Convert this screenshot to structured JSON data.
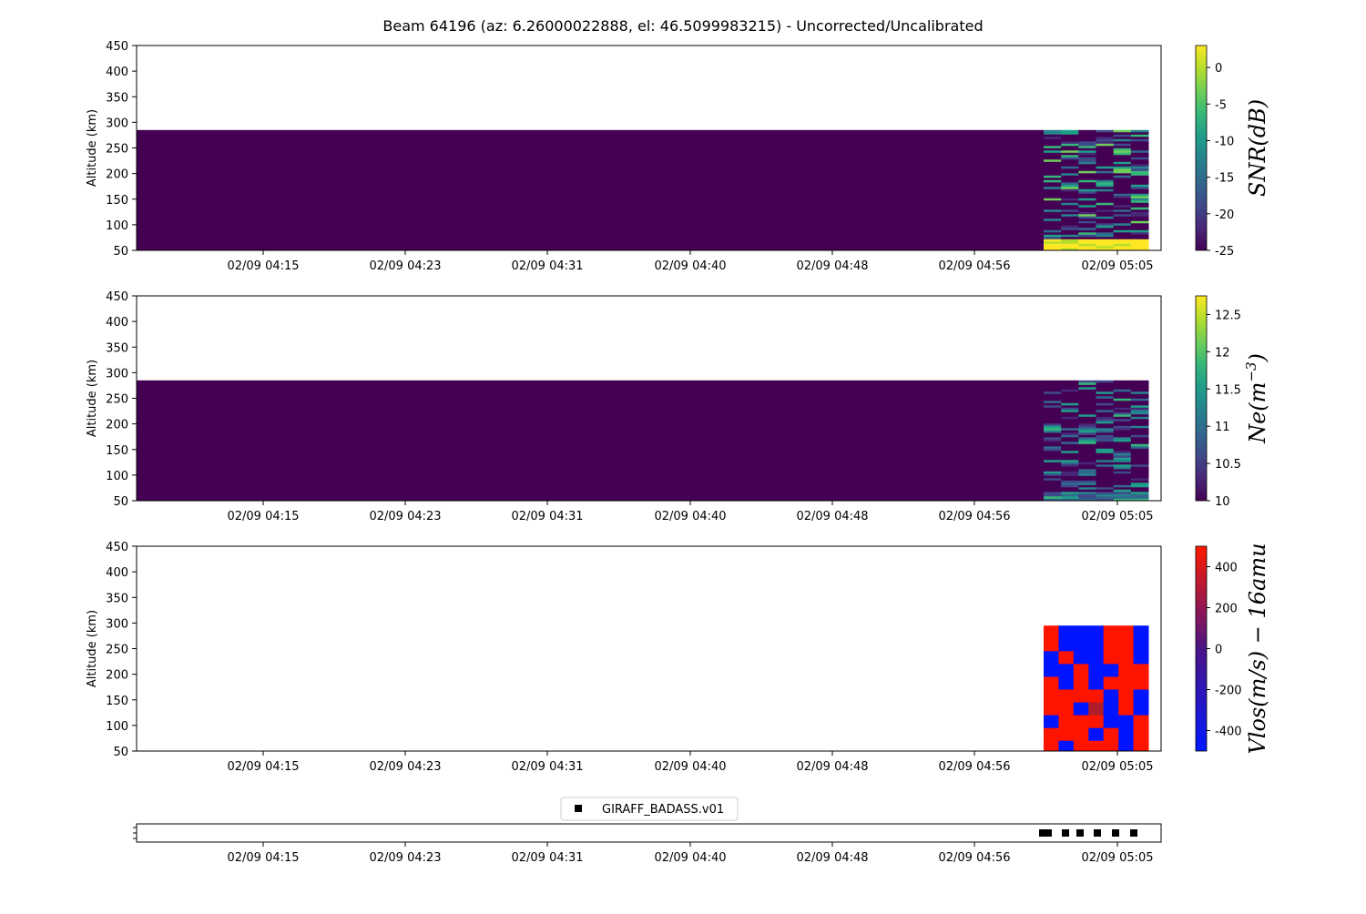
{
  "figure": {
    "title": "Beam 64196 (az: 6.26000022888, el: 46.5099983215) - Uncorrected/Uncalibrated"
  },
  "time_ticks": [
    "02/09 04:15",
    "02/09 04:23",
    "02/09 04:31",
    "02/09 04:40",
    "02/09 04:48",
    "02/09 04:56",
    "02/09 05:05"
  ],
  "chart_data": [
    {
      "type": "heatmap",
      "panel": "snr",
      "ylabel": "Altitude (km)",
      "ylim": [
        50,
        450
      ],
      "yticks": [
        50,
        100,
        150,
        200,
        250,
        300,
        350,
        400,
        450
      ],
      "colorbar": {
        "label_base": "SNR(dB)",
        "label_sup": "",
        "label_tail": "",
        "colormap": "viridis",
        "range": [
          -25,
          3
        ],
        "ticks": [
          0,
          -5,
          -10,
          -15,
          -20,
          -25
        ]
      },
      "fill_value": -25,
      "fill_region": {
        "alt_range": [
          50,
          285
        ],
        "time_start": "02/09 04:08",
        "time_end": "02/09 05:01"
      },
      "data_region": {
        "alt_range": [
          50,
          285
        ],
        "time_start": "02/09 05:01",
        "time_end": "02/09 05:07"
      },
      "notes": "Noisy horizontal striped SNR values between -25 and 0 dB, brightest near 50-75 km"
    },
    {
      "type": "heatmap",
      "panel": "ne",
      "ylabel": "Altitude (km)",
      "ylim": [
        50,
        450
      ],
      "yticks": [
        50,
        100,
        150,
        200,
        250,
        300,
        350,
        400,
        450
      ],
      "colorbar": {
        "label_base": "Ne(m",
        "label_sup": "−3",
        "label_tail": ")",
        "colormap": "viridis",
        "range": [
          10.0,
          12.75
        ],
        "ticks": [
          12.5,
          12.0,
          11.5,
          11.0,
          10.5,
          10.0
        ]
      },
      "fill_value": 10.0,
      "fill_region": {
        "alt_range": [
          50,
          285
        ],
        "time_start": "02/09 04:08",
        "time_end": "02/09 05:01"
      },
      "data_region": {
        "alt_range": [
          50,
          285
        ],
        "time_start": "02/09 05:01",
        "time_end": "02/09 05:07"
      }
    },
    {
      "type": "heatmap",
      "panel": "vlos",
      "ylabel": "Altitude (km)",
      "ylim": [
        50,
        450
      ],
      "yticks": [
        50,
        100,
        150,
        200,
        250,
        300,
        350,
        400,
        450
      ],
      "colorbar": {
        "label_base": "Vlos(m/s) − 16amu",
        "label_sup": "",
        "label_tail": "",
        "colormap": "blue-red",
        "range": [
          -500,
          500
        ],
        "ticks": [
          400,
          200,
          0,
          -200,
          -400
        ]
      },
      "altitude_edges": [
        295,
        270,
        245,
        220,
        195,
        170,
        145,
        120,
        95,
        70,
        50
      ],
      "time_columns": [
        "05:01a",
        "05:01b",
        "05:02",
        "05:03",
        "05:04",
        "05:05",
        "05:06"
      ],
      "values": [
        [
          500,
          -500,
          -500,
          -500,
          500,
          500,
          -500
        ],
        [
          500,
          -500,
          -500,
          -500,
          500,
          500,
          -500
        ],
        [
          -500,
          500,
          -500,
          -500,
          500,
          500,
          -500
        ],
        [
          -500,
          -500,
          500,
          -500,
          -500,
          500,
          500
        ],
        [
          500,
          -500,
          500,
          -500,
          500,
          500,
          500
        ],
        [
          500,
          500,
          500,
          500,
          -500,
          500,
          -500
        ],
        [
          500,
          500,
          -500,
          100,
          -500,
          500,
          -500
        ],
        [
          -500,
          500,
          500,
          500,
          -500,
          -500,
          500
        ],
        [
          500,
          500,
          500,
          -500,
          500,
          -500,
          500
        ],
        [
          500,
          -500,
          500,
          500,
          500,
          -500,
          500
        ],
        [
          500,
          -500,
          -500,
          100,
          -500,
          -500,
          -500
        ]
      ]
    },
    {
      "type": "scatter",
      "panel": "markers",
      "legend": {
        "entries": [
          "GIRAFF_BADASS.v01"
        ],
        "placement": "top-center"
      },
      "x": [
        "05:01",
        "05:02",
        "05:03",
        "05:04",
        "05:05",
        "05:06"
      ]
    }
  ]
}
